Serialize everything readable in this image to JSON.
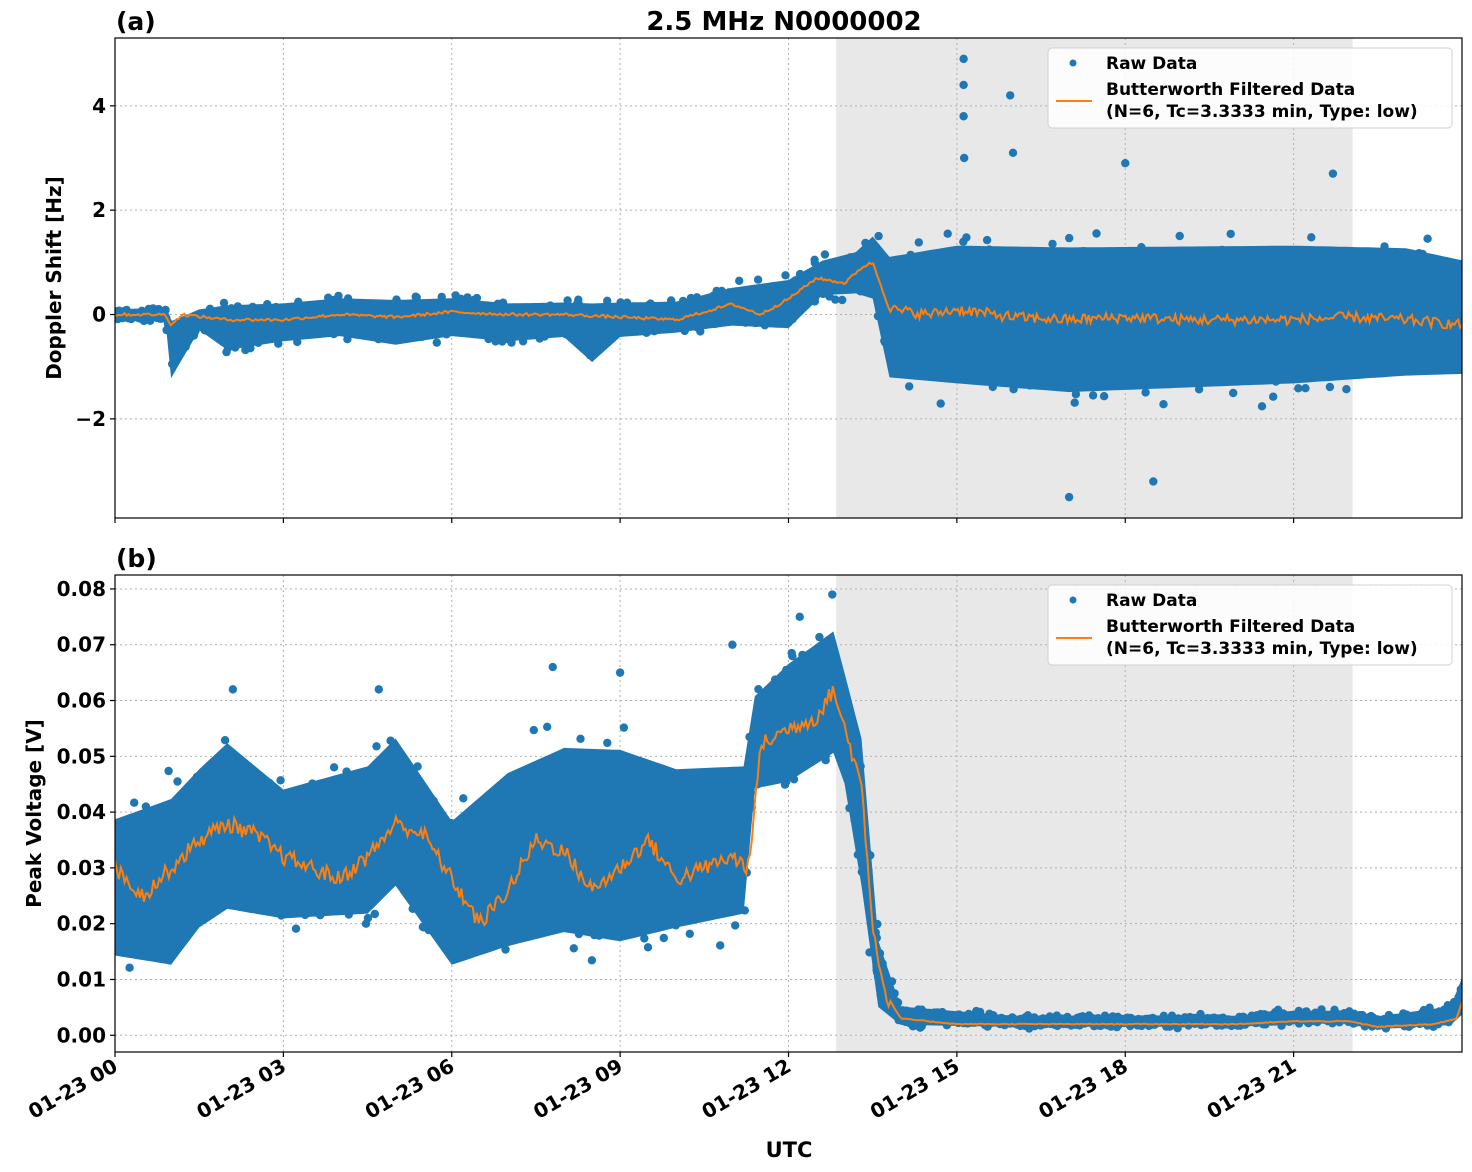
{
  "figure": {
    "title": "2.5 MHz N0000002",
    "xlabel": "UTC"
  },
  "colors": {
    "raw": "#1f77b4",
    "filtered": "#ff7f0e",
    "shade": "#e8e8e8",
    "grid": "#b0b0b0"
  },
  "x_axis": {
    "range_hours": [
      0,
      24
    ],
    "ticks": [
      {
        "hour": 0,
        "label": "01-23 00"
      },
      {
        "hour": 3,
        "label": "01-23 03"
      },
      {
        "hour": 6,
        "label": "01-23 06"
      },
      {
        "hour": 9,
        "label": "01-23 09"
      },
      {
        "hour": 12,
        "label": "01-23 12"
      },
      {
        "hour": 15,
        "label": "01-23 15"
      },
      {
        "hour": 18,
        "label": "01-23 18"
      },
      {
        "hour": 21,
        "label": "01-23 21"
      }
    ]
  },
  "shaded_interval_hours": [
    12.85,
    22.05
  ],
  "legend": {
    "raw_label": "Raw Data",
    "filtered_label_line1": "Butterworth Filtered Data",
    "filtered_label_line2": "(N=6, Tc=3.3333 min, Type: low)"
  },
  "chart_data": [
    {
      "type": "scatter",
      "panel_label": "(a)",
      "ylabel": "Doppler Shift [Hz]",
      "ylim": [
        -3.9,
        5.3
      ],
      "yticks": [
        {
          "v": -2,
          "label": "−2"
        },
        {
          "v": 0,
          "label": "0"
        },
        {
          "v": 2,
          "label": "2"
        },
        {
          "v": 4,
          "label": "4"
        }
      ],
      "grid": true,
      "legend_position": "top-right",
      "raw_envelope": [
        {
          "t": 0.0,
          "lo": -0.15,
          "hi": 0.15
        },
        {
          "t": 0.9,
          "lo": -0.2,
          "hi": 0.2
        },
        {
          "t": 1.0,
          "lo": -1.5,
          "hi": 0.15
        },
        {
          "t": 1.5,
          "lo": -0.4,
          "hi": 0.2
        },
        {
          "t": 2.0,
          "lo": -0.9,
          "hi": 0.4
        },
        {
          "t": 3.0,
          "lo": -0.7,
          "hi": 0.4
        },
        {
          "t": 4.0,
          "lo": -0.6,
          "hi": 0.5
        },
        {
          "t": 5.0,
          "lo": -0.8,
          "hi": 0.5
        },
        {
          "t": 6.0,
          "lo": -0.6,
          "hi": 0.5
        },
        {
          "t": 7.0,
          "lo": -0.7,
          "hi": 0.4
        },
        {
          "t": 8.0,
          "lo": -0.6,
          "hi": 0.4
        },
        {
          "t": 8.5,
          "lo": -1.2,
          "hi": 0.5
        },
        {
          "t": 9.0,
          "lo": -0.6,
          "hi": 0.4
        },
        {
          "t": 10.0,
          "lo": -0.5,
          "hi": 0.4
        },
        {
          "t": 11.0,
          "lo": -0.4,
          "hi": 0.7
        },
        {
          "t": 12.0,
          "lo": -0.5,
          "hi": 0.9
        },
        {
          "t": 12.6,
          "lo": 0.2,
          "hi": 1.2
        },
        {
          "t": 13.2,
          "lo": 0.2,
          "hi": 1.4
        },
        {
          "t": 13.5,
          "lo": 0.0,
          "hi": 1.8
        },
        {
          "t": 13.8,
          "lo": -1.8,
          "hi": 1.7
        },
        {
          "t": 15.0,
          "lo": -2.0,
          "hi": 2.0
        },
        {
          "t": 17.0,
          "lo": -2.2,
          "hi": 2.0
        },
        {
          "t": 19.0,
          "lo": -2.1,
          "hi": 2.0
        },
        {
          "t": 21.0,
          "lo": -2.0,
          "hi": 2.0
        },
        {
          "t": 23.0,
          "lo": -1.8,
          "hi": 1.9
        },
        {
          "t": 24.0,
          "lo": -1.7,
          "hi": 1.6
        }
      ],
      "filtered": [
        {
          "t": 0.0,
          "v": 0.0
        },
        {
          "t": 0.9,
          "v": 0.0
        },
        {
          "t": 1.0,
          "v": -0.2
        },
        {
          "t": 1.2,
          "v": 0.0
        },
        {
          "t": 2.0,
          "v": -0.1
        },
        {
          "t": 3.0,
          "v": -0.1
        },
        {
          "t": 4.0,
          "v": 0.0
        },
        {
          "t": 5.0,
          "v": -0.05
        },
        {
          "t": 6.0,
          "v": 0.05
        },
        {
          "t": 7.0,
          "v": 0.0
        },
        {
          "t": 8.0,
          "v": 0.0
        },
        {
          "t": 9.0,
          "v": -0.05
        },
        {
          "t": 10.0,
          "v": -0.1
        },
        {
          "t": 11.0,
          "v": 0.2
        },
        {
          "t": 11.5,
          "v": 0.0
        },
        {
          "t": 12.0,
          "v": 0.3
        },
        {
          "t": 12.5,
          "v": 0.7
        },
        {
          "t": 13.0,
          "v": 0.6
        },
        {
          "t": 13.3,
          "v": 0.9
        },
        {
          "t": 13.5,
          "v": 1.0
        },
        {
          "t": 13.8,
          "v": 0.1
        },
        {
          "t": 14.5,
          "v": 0.0
        },
        {
          "t": 15.0,
          "v": 0.1
        },
        {
          "t": 16.0,
          "v": -0.05
        },
        {
          "t": 17.0,
          "v": -0.1
        },
        {
          "t": 18.0,
          "v": -0.05
        },
        {
          "t": 19.0,
          "v": -0.1
        },
        {
          "t": 20.0,
          "v": -0.1
        },
        {
          "t": 21.0,
          "v": -0.1
        },
        {
          "t": 22.0,
          "v": -0.05
        },
        {
          "t": 23.0,
          "v": -0.1
        },
        {
          "t": 24.0,
          "v": -0.2
        }
      ],
      "spikes": [
        {
          "t": 15.12,
          "v": 4.9
        },
        {
          "t": 15.12,
          "v": 4.4
        },
        {
          "t": 15.12,
          "v": 3.8
        },
        {
          "t": 15.13,
          "v": 3.0
        },
        {
          "t": 15.95,
          "v": 4.2
        },
        {
          "t": 16.0,
          "v": 3.1
        },
        {
          "t": 18.0,
          "v": 2.9
        },
        {
          "t": 21.7,
          "v": 2.7
        },
        {
          "t": 17.0,
          "v": -3.5
        },
        {
          "t": 18.5,
          "v": -3.2
        }
      ]
    },
    {
      "type": "scatter",
      "panel_label": "(b)",
      "ylabel": "Peak Voltage [V]",
      "ylim": [
        -0.003,
        0.0825
      ],
      "yticks": [
        {
          "v": 0.0,
          "label": "0.00"
        },
        {
          "v": 0.01,
          "label": "0.01"
        },
        {
          "v": 0.02,
          "label": "0.02"
        },
        {
          "v": 0.03,
          "label": "0.03"
        },
        {
          "v": 0.04,
          "label": "0.04"
        },
        {
          "v": 0.05,
          "label": "0.05"
        },
        {
          "v": 0.06,
          "label": "0.06"
        },
        {
          "v": 0.07,
          "label": "0.07"
        },
        {
          "v": 0.08,
          "label": "0.08"
        }
      ],
      "grid": true,
      "legend_position": "top-right",
      "raw_envelope": [
        {
          "t": 0.0,
          "lo": 0.008,
          "hi": 0.045
        },
        {
          "t": 1.0,
          "lo": 0.005,
          "hi": 0.05
        },
        {
          "t": 1.5,
          "lo": 0.012,
          "hi": 0.055
        },
        {
          "t": 2.0,
          "lo": 0.015,
          "hi": 0.06
        },
        {
          "t": 3.0,
          "lo": 0.015,
          "hi": 0.05
        },
        {
          "t": 4.5,
          "lo": 0.015,
          "hi": 0.055
        },
        {
          "t": 5.0,
          "lo": 0.02,
          "hi": 0.06
        },
        {
          "t": 6.0,
          "lo": 0.006,
          "hi": 0.045
        },
        {
          "t": 7.0,
          "lo": 0.008,
          "hi": 0.055
        },
        {
          "t": 8.0,
          "lo": 0.01,
          "hi": 0.06
        },
        {
          "t": 9.0,
          "lo": 0.008,
          "hi": 0.06
        },
        {
          "t": 10.0,
          "lo": 0.012,
          "hi": 0.055
        },
        {
          "t": 11.2,
          "lo": 0.015,
          "hi": 0.055
        },
        {
          "t": 11.4,
          "lo": 0.04,
          "hi": 0.065
        },
        {
          "t": 12.0,
          "lo": 0.04,
          "hi": 0.072
        },
        {
          "t": 12.8,
          "lo": 0.045,
          "hi": 0.078
        },
        {
          "t": 13.0,
          "lo": 0.04,
          "hi": 0.07
        },
        {
          "t": 13.3,
          "lo": 0.02,
          "hi": 0.06
        },
        {
          "t": 13.6,
          "lo": 0.002,
          "hi": 0.02
        },
        {
          "t": 14.0,
          "lo": 0.001,
          "hi": 0.006
        },
        {
          "t": 16.0,
          "lo": 0.001,
          "hi": 0.004
        },
        {
          "t": 20.0,
          "lo": 0.001,
          "hi": 0.004
        },
        {
          "t": 21.0,
          "lo": 0.0015,
          "hi": 0.005
        },
        {
          "t": 22.0,
          "lo": 0.0015,
          "hi": 0.005
        },
        {
          "t": 22.5,
          "lo": 0.0005,
          "hi": 0.004
        },
        {
          "t": 23.8,
          "lo": 0.001,
          "hi": 0.006
        },
        {
          "t": 24.0,
          "lo": 0.002,
          "hi": 0.012
        }
      ],
      "filtered": [
        {
          "t": 0.0,
          "v": 0.03
        },
        {
          "t": 0.5,
          "v": 0.025
        },
        {
          "t": 1.0,
          "v": 0.03
        },
        {
          "t": 1.5,
          "v": 0.035
        },
        {
          "t": 2.0,
          "v": 0.038
        },
        {
          "t": 2.5,
          "v": 0.036
        },
        {
          "t": 3.0,
          "v": 0.032
        },
        {
          "t": 3.5,
          "v": 0.03
        },
        {
          "t": 4.0,
          "v": 0.028
        },
        {
          "t": 4.5,
          "v": 0.032
        },
        {
          "t": 5.0,
          "v": 0.038
        },
        {
          "t": 5.5,
          "v": 0.036
        },
        {
          "t": 6.0,
          "v": 0.028
        },
        {
          "t": 6.5,
          "v": 0.02
        },
        {
          "t": 7.0,
          "v": 0.026
        },
        {
          "t": 7.5,
          "v": 0.035
        },
        {
          "t": 8.0,
          "v": 0.033
        },
        {
          "t": 8.5,
          "v": 0.026
        },
        {
          "t": 9.0,
          "v": 0.03
        },
        {
          "t": 9.5,
          "v": 0.035
        },
        {
          "t": 10.0,
          "v": 0.028
        },
        {
          "t": 10.5,
          "v": 0.03
        },
        {
          "t": 11.0,
          "v": 0.032
        },
        {
          "t": 11.3,
          "v": 0.03
        },
        {
          "t": 11.5,
          "v": 0.052
        },
        {
          "t": 12.0,
          "v": 0.055
        },
        {
          "t": 12.5,
          "v": 0.057
        },
        {
          "t": 12.8,
          "v": 0.062
        },
        {
          "t": 13.0,
          "v": 0.055
        },
        {
          "t": 13.3,
          "v": 0.045
        },
        {
          "t": 13.5,
          "v": 0.02
        },
        {
          "t": 13.7,
          "v": 0.008
        },
        {
          "t": 14.0,
          "v": 0.003
        },
        {
          "t": 15.0,
          "v": 0.002
        },
        {
          "t": 20.0,
          "v": 0.002
        },
        {
          "t": 21.0,
          "v": 0.0025
        },
        {
          "t": 22.0,
          "v": 0.0025
        },
        {
          "t": 22.5,
          "v": 0.0015
        },
        {
          "t": 23.5,
          "v": 0.002
        },
        {
          "t": 23.9,
          "v": 0.003
        },
        {
          "t": 24.0,
          "v": 0.006
        }
      ],
      "spikes": [
        {
          "t": 12.78,
          "v": 0.079
        },
        {
          "t": 12.2,
          "v": 0.075
        },
        {
          "t": 11.0,
          "v": 0.07
        },
        {
          "t": 9.0,
          "v": 0.065
        },
        {
          "t": 7.8,
          "v": 0.066
        },
        {
          "t": 4.7,
          "v": 0.062
        },
        {
          "t": 2.1,
          "v": 0.062
        }
      ]
    }
  ]
}
